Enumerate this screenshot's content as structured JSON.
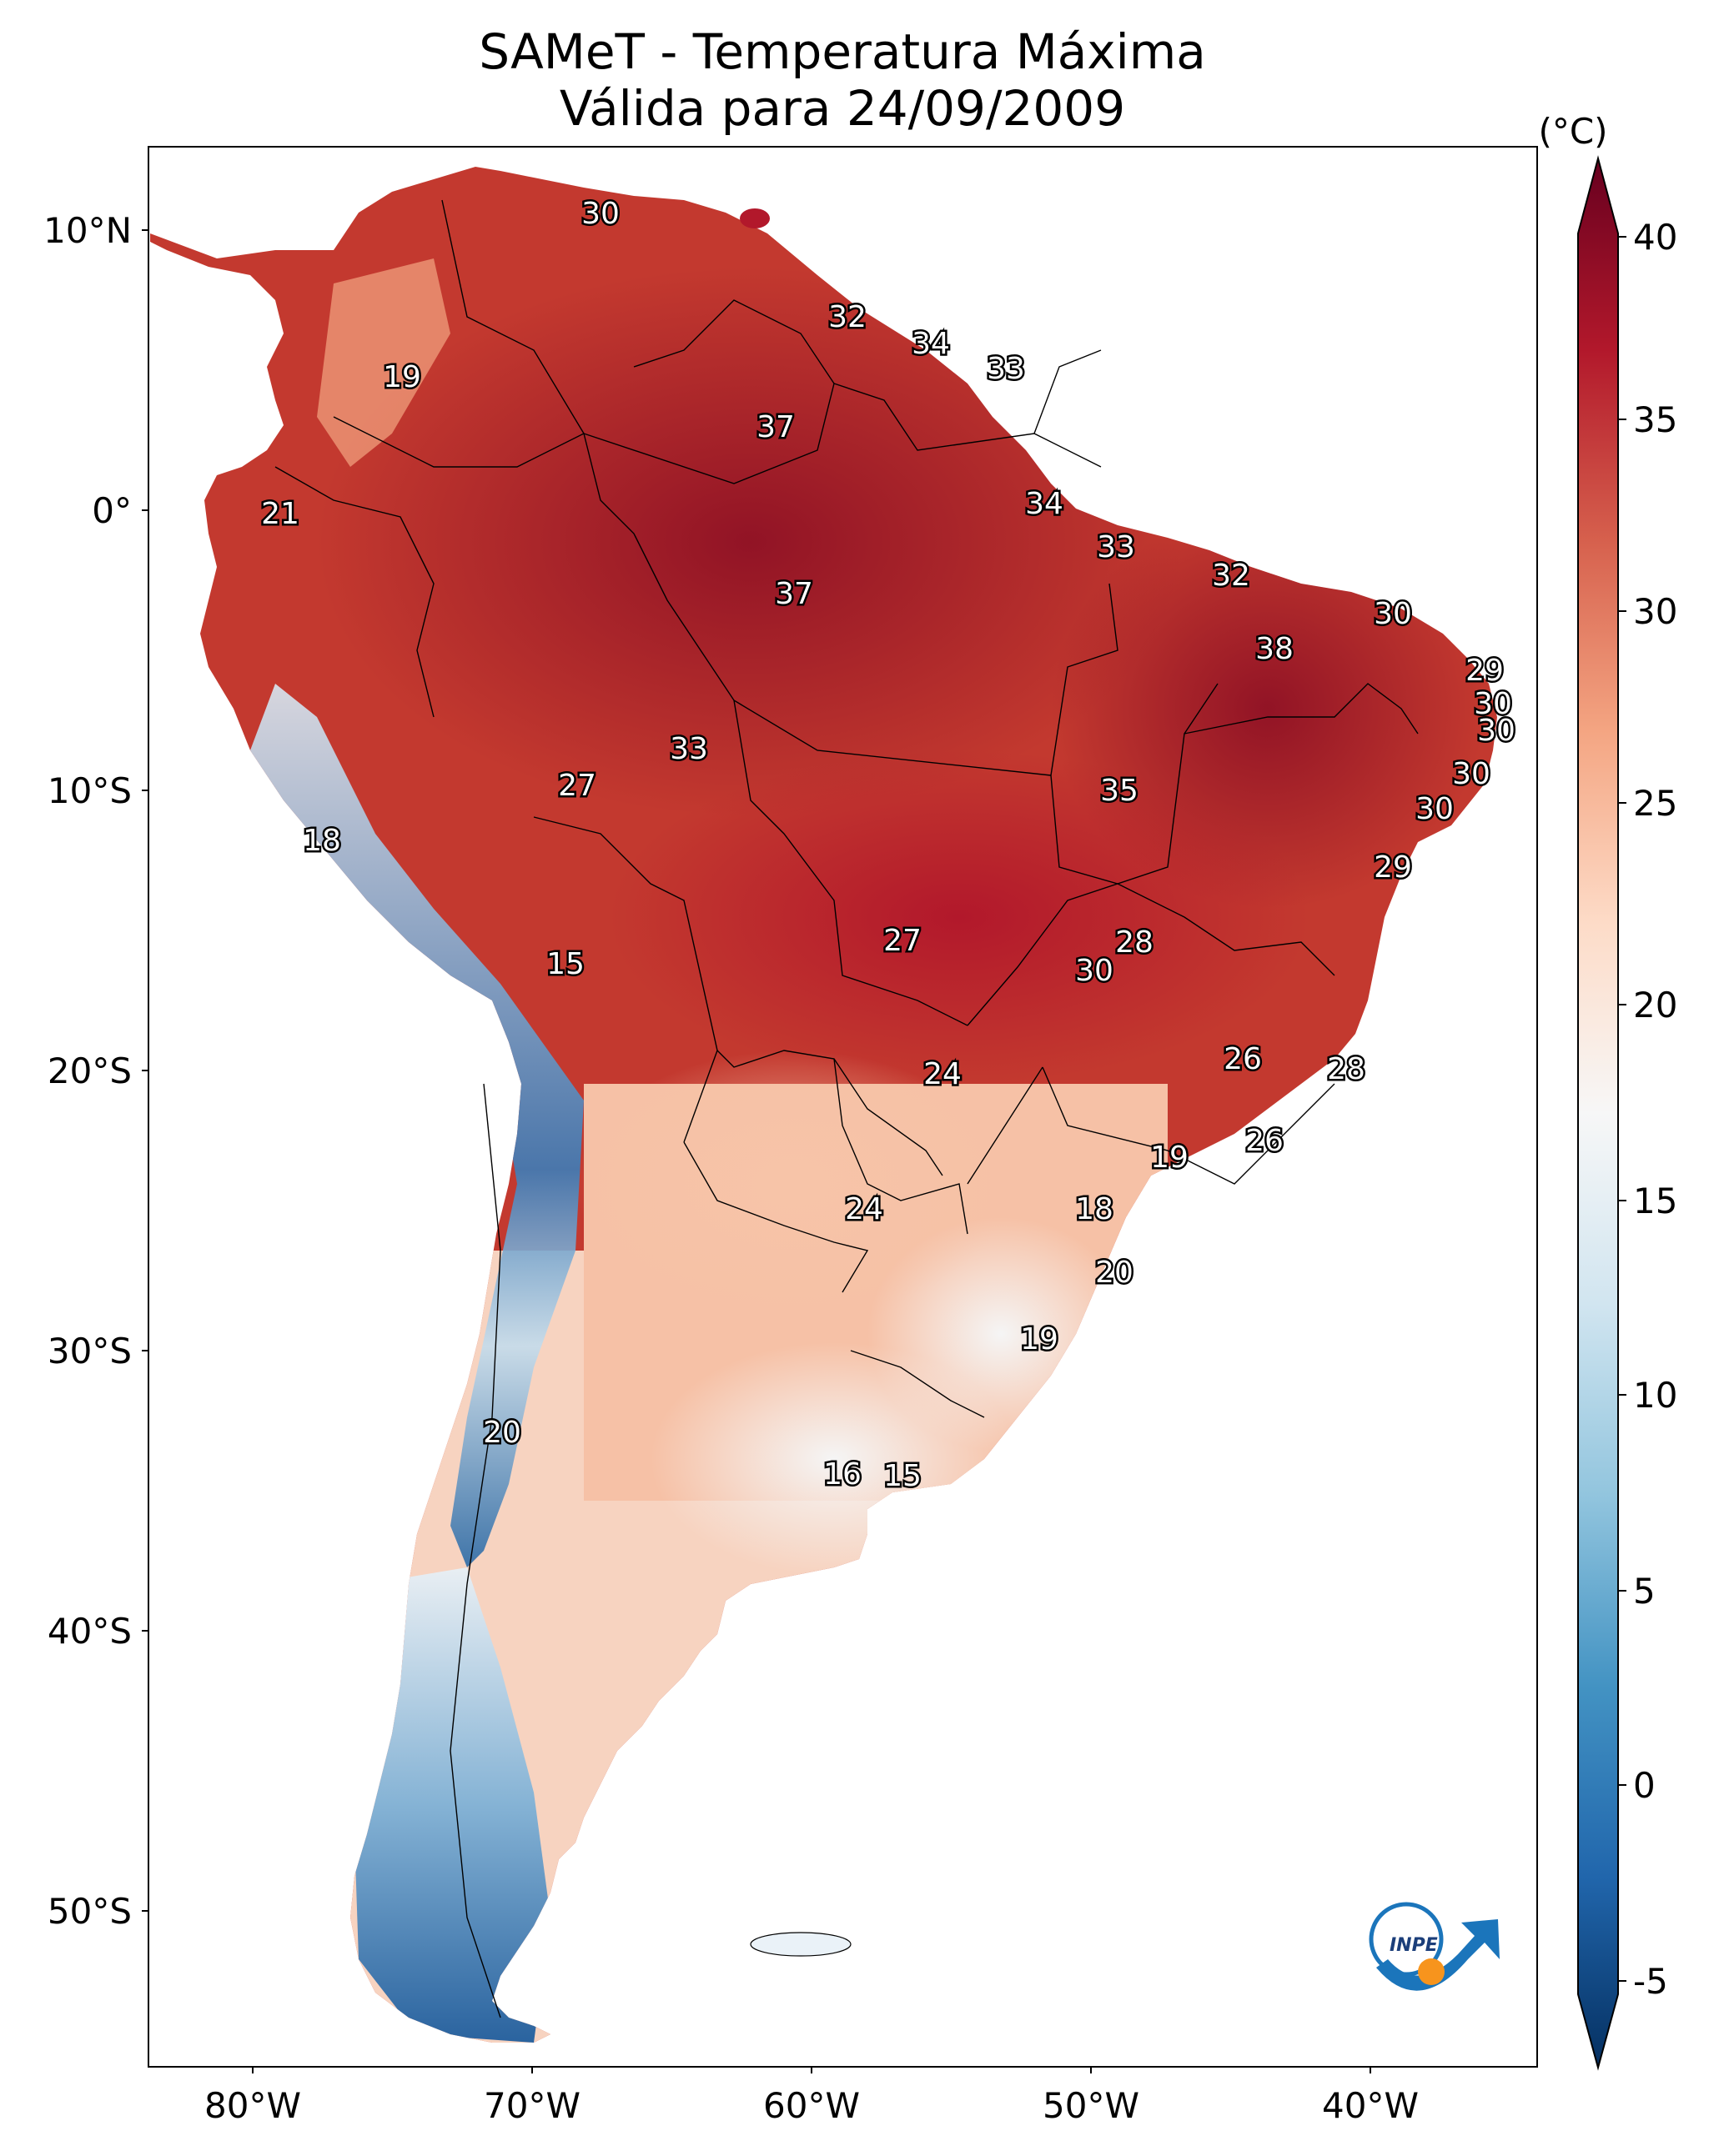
{
  "title_line1": "SAMeT - Temperatura Máxima",
  "title_line2": "Válida para 24/09/2009",
  "colorbar": {
    "unit_label": "(°C)",
    "ticks": [
      "40",
      "35",
      "30",
      "25",
      "20",
      "15",
      "10",
      "5",
      "0",
      "-5"
    ],
    "colors": [
      "#053061",
      "#2166ac",
      "#4393c3",
      "#92c5de",
      "#d1e5f0",
      "#f7f7f7",
      "#fddbc7",
      "#f4a582",
      "#d6604d",
      "#b2182b",
      "#67001f"
    ]
  },
  "axes": {
    "lat_labels": [
      "10°N",
      "0°",
      "10°S",
      "20°S",
      "30°S",
      "40°S",
      "50°S"
    ],
    "lon_labels": [
      "80°W",
      "70°W",
      "60°W",
      "50°W",
      "40°W"
    ]
  },
  "contour_labels": [
    "30",
    "32",
    "34",
    "33",
    "19",
    "37",
    "21",
    "34",
    "33",
    "32",
    "37",
    "30",
    "38",
    "29",
    "30",
    "30",
    "33",
    "27",
    "35",
    "30",
    "18",
    "30",
    "29",
    "15",
    "27",
    "28",
    "30",
    "24",
    "26",
    "28",
    "26",
    "19",
    "24",
    "18",
    "20",
    "19",
    "20",
    "16",
    "15"
  ],
  "logo_text": "INPE"
}
